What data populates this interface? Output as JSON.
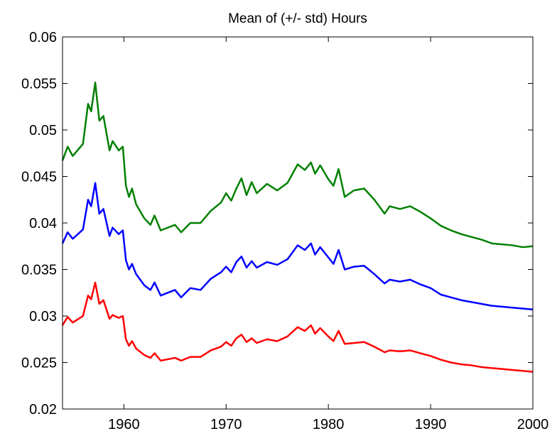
{
  "chart_data": {
    "type": "line",
    "title": "Mean of (+/- std) Hours",
    "x": [
      1954,
      1954.5,
      1955,
      1956,
      1956.5,
      1956.8,
      1957.2,
      1957.6,
      1958,
      1958.6,
      1958.9,
      1959.5,
      1959.9,
      1960.2,
      1960.5,
      1960.8,
      1961.2,
      1962,
      1962.6,
      1963,
      1963.6,
      1965,
      1965.6,
      1966.5,
      1967.5,
      1968.5,
      1969.5,
      1970,
      1970.5,
      1971,
      1971.5,
      1972,
      1972.5,
      1973,
      1974,
      1975,
      1976,
      1977,
      1977.7,
      1978.3,
      1978.7,
      1979.2,
      1980,
      1980.5,
      1981,
      1981.6,
      1982.5,
      1983.5,
      1984.5,
      1985.5,
      1986,
      1987,
      1988,
      1989,
      1990,
      1991,
      1992,
      1993,
      1994,
      1995,
      1996,
      1997,
      1998,
      1999,
      2000
    ],
    "series": [
      {
        "color": "#008000",
        "values": [
          0.0467,
          0.0482,
          0.0472,
          0.0485,
          0.0528,
          0.052,
          0.0551,
          0.051,
          0.0515,
          0.0478,
          0.0488,
          0.0478,
          0.0482,
          0.044,
          0.0428,
          0.0437,
          0.042,
          0.0405,
          0.0398,
          0.0408,
          0.0392,
          0.0398,
          0.039,
          0.04,
          0.04,
          0.0413,
          0.0422,
          0.0432,
          0.0424,
          0.0437,
          0.0448,
          0.043,
          0.0444,
          0.0432,
          0.0442,
          0.0435,
          0.0443,
          0.0463,
          0.0457,
          0.0465,
          0.0453,
          0.0462,
          0.0447,
          0.044,
          0.0458,
          0.0428,
          0.0435,
          0.0437,
          0.0425,
          0.041,
          0.0418,
          0.0415,
          0.0418,
          0.0412,
          0.0405,
          0.0397,
          0.0392,
          0.0388,
          0.0385,
          0.0382,
          0.0378,
          0.0377,
          0.0376,
          0.0374,
          0.0375
        ]
      },
      {
        "color": "#0000ff",
        "values": [
          0.0378,
          0.039,
          0.0383,
          0.0393,
          0.0425,
          0.0418,
          0.0443,
          0.041,
          0.0415,
          0.0386,
          0.0395,
          0.0388,
          0.0392,
          0.036,
          0.035,
          0.0356,
          0.0345,
          0.0333,
          0.0328,
          0.0336,
          0.0322,
          0.0328,
          0.032,
          0.033,
          0.0328,
          0.034,
          0.0347,
          0.0353,
          0.0347,
          0.0358,
          0.0364,
          0.0352,
          0.0359,
          0.0352,
          0.0358,
          0.0355,
          0.0361,
          0.0376,
          0.0371,
          0.0378,
          0.0366,
          0.0374,
          0.0363,
          0.0356,
          0.0371,
          0.035,
          0.0353,
          0.0354,
          0.0345,
          0.0335,
          0.0339,
          0.0337,
          0.0339,
          0.0334,
          0.033,
          0.0323,
          0.032,
          0.0317,
          0.0315,
          0.0313,
          0.0311,
          0.031,
          0.0309,
          0.0308,
          0.0307
        ]
      },
      {
        "color": "#ff0000",
        "values": [
          0.029,
          0.0299,
          0.0293,
          0.03,
          0.0322,
          0.0318,
          0.0336,
          0.0313,
          0.0317,
          0.0297,
          0.0301,
          0.0298,
          0.03,
          0.0275,
          0.0268,
          0.0273,
          0.0265,
          0.0258,
          0.0255,
          0.026,
          0.0252,
          0.0255,
          0.0252,
          0.0256,
          0.0256,
          0.0263,
          0.0267,
          0.0272,
          0.0268,
          0.0276,
          0.028,
          0.0272,
          0.0276,
          0.0271,
          0.0275,
          0.0273,
          0.0278,
          0.0288,
          0.0284,
          0.029,
          0.0281,
          0.0287,
          0.0278,
          0.0273,
          0.0284,
          0.027,
          0.0271,
          0.0272,
          0.0267,
          0.0261,
          0.0263,
          0.0262,
          0.0263,
          0.026,
          0.0257,
          0.0253,
          0.025,
          0.0248,
          0.0247,
          0.0245,
          0.0244,
          0.0243,
          0.0242,
          0.0241,
          0.024
        ]
      }
    ],
    "xlim": [
      1954,
      2000
    ],
    "xticks": [
      1960,
      1970,
      1980,
      1990,
      2000
    ],
    "ylim": [
      0.02,
      0.06
    ],
    "yticks": [
      0.02,
      0.025,
      0.03,
      0.035,
      0.04,
      0.045,
      0.05,
      0.055,
      0.06
    ],
    "grid": false
  }
}
